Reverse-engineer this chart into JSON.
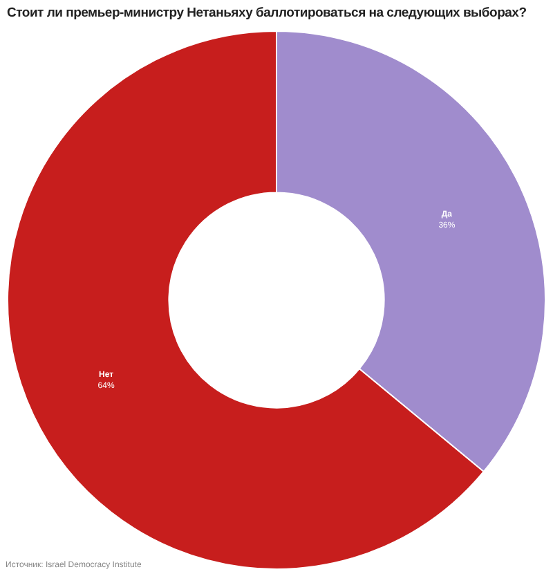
{
  "chart_data": {
    "type": "donut",
    "title": "Стоит ли премьер-министру Нетаньяху баллотироваться на следующих выборах?",
    "categories": [
      "Да",
      "Нет"
    ],
    "values": [
      36,
      64
    ],
    "value_labels": [
      "36%",
      "64%"
    ],
    "colors": [
      "#a08ccd",
      "#c71e1d"
    ],
    "annotations": [
      "Источник: Israel Democracy Institute"
    ],
    "legend": false
  }
}
